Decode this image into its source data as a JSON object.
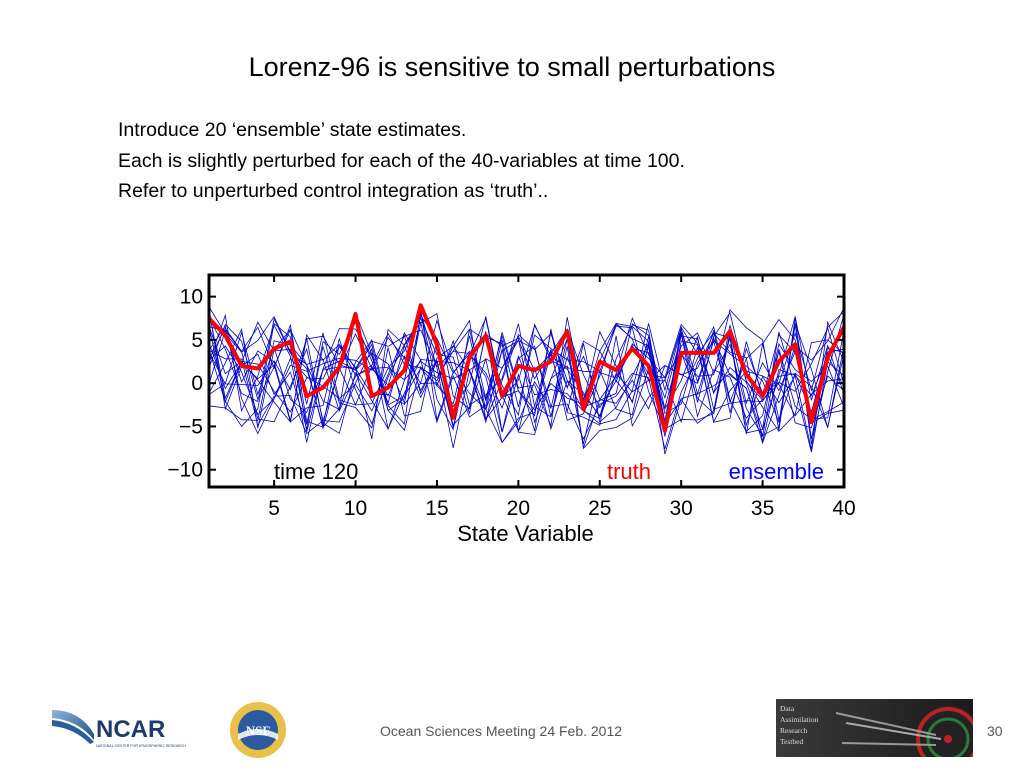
{
  "slide": {
    "title": "Lorenz-96 is sensitive to small perturbations",
    "bullets": [
      "Introduce 20 ‘ensemble’ state estimates.",
      "Each is slightly perturbed for each of the 40-variables at time 100.",
      "Refer to unperturbed control integration as ‘truth’.."
    ]
  },
  "footer": {
    "text": "Ocean Sciences Meeting 24 Feb. 2012",
    "page_number": "30",
    "dart_logo_lines": [
      "Data",
      "Assimilation",
      "Research",
      "Testbed"
    ],
    "ncar_logo_text": "NCAR",
    "ncar_logo_subtext": "NATIONAL CENTER FOR ATMOSPHERIC RESEARCH",
    "nsf_logo_text": "NSF"
  },
  "chart_data": {
    "type": "line",
    "xlabel": "State Variable",
    "ylabel": "",
    "xlim": [
      1,
      40
    ],
    "ylim": [
      -12,
      12.5
    ],
    "xticks": [
      5,
      10,
      15,
      20,
      25,
      30,
      35,
      40
    ],
    "yticks": [
      10,
      5,
      0,
      -5,
      -10
    ],
    "ytick_labels": [
      "10",
      "5",
      "0",
      "−5",
      "−10"
    ],
    "grid": false,
    "annotations": [
      {
        "text": "time 120",
        "color": "#000000"
      },
      {
        "text": "truth",
        "color": "#ff0000"
      },
      {
        "text": "ensemble",
        "color": "#0000ff"
      }
    ],
    "colors": {
      "truth": "#ff0000",
      "ensemble": "#0000cc"
    },
    "x": [
      1,
      2,
      3,
      4,
      5,
      6,
      7,
      8,
      9,
      10,
      11,
      12,
      13,
      14,
      15,
      16,
      17,
      18,
      19,
      20,
      21,
      22,
      23,
      24,
      25,
      26,
      27,
      28,
      29,
      30,
      31,
      32,
      33,
      34,
      35,
      36,
      37,
      38,
      39,
      40
    ],
    "series": [
      {
        "name": "truth",
        "values": [
          7.5,
          5.5,
          2,
          1.7,
          4,
          4.8,
          -1.5,
          -0.5,
          1.8,
          8,
          -1.5,
          -0.5,
          1.5,
          9,
          4.5,
          -4,
          3,
          5.5,
          -1.5,
          2,
          1.5,
          2.5,
          6,
          -3,
          2.5,
          1.5,
          4,
          2,
          -5.5,
          3.5,
          3.5,
          3.5,
          6,
          1,
          -1.5,
          2.5,
          4.5,
          -4.5,
          3,
          6.5
        ]
      }
    ],
    "ensemble_members": 20
  }
}
